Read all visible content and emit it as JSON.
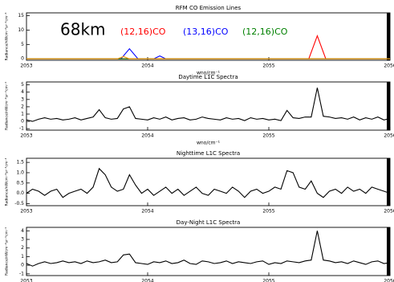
{
  "chart_data": [
    {
      "type": "line",
      "title": "RFM CO Emission Lines",
      "xlabel": "wno/cm⁻¹",
      "ylabel": "Radiance/nWcm⁻²sr⁻¹cm⁻¹",
      "annotation": "68km",
      "xlim": [
        2053,
        2056
      ],
      "xticks": [
        2053,
        2054,
        2055,
        2056
      ],
      "ylim": [
        -0.5,
        16
      ],
      "yticks": [
        0,
        5,
        10,
        15
      ],
      "series": [
        {
          "name": "(12,16)CO",
          "color": "#ff0000",
          "x": [
            2053,
            2055.33,
            2055.4,
            2055.47,
            2056
          ],
          "values": [
            0,
            0,
            8,
            0,
            0
          ]
        },
        {
          "name": "(13,16)CO",
          "color": "#0000ff",
          "x": [
            2053,
            2053.78,
            2053.85,
            2053.92,
            2054.05,
            2054.1,
            2054.15,
            2056
          ],
          "values": [
            0,
            0,
            3.5,
            0,
            0,
            1,
            0,
            0
          ]
        },
        {
          "name": "(12,16)CO",
          "color": "#008000",
          "x": [
            2053,
            2056
          ],
          "values": [
            0,
            0
          ]
        },
        {
          "color": "#ff9900",
          "x": [
            2053,
            2053.75,
            2053.8,
            2053.85,
            2056
          ],
          "values": [
            0,
            0,
            0.8,
            0,
            0
          ]
        }
      ]
    },
    {
      "type": "line",
      "title": "Daytime L1C Spectra",
      "xlabel": "wno/cm⁻¹",
      "ylabel": "Radiance/nWcm⁻²sr⁻¹cm⁻¹",
      "xlim": [
        2053,
        2056
      ],
      "xticks": [
        2053,
        2054,
        2055,
        2056
      ],
      "ylim": [
        -1.2,
        5.4
      ],
      "yticks": [
        -1,
        0,
        1,
        2,
        3,
        4,
        5
      ],
      "color": "#000000",
      "x": [
        2053,
        2053.05,
        2053.1,
        2053.15,
        2053.2,
        2053.25,
        2053.3,
        2053.35,
        2053.4,
        2053.45,
        2053.5,
        2053.55,
        2053.6,
        2053.65,
        2053.7,
        2053.75,
        2053.8,
        2053.85,
        2053.9,
        2053.95,
        2054,
        2054.05,
        2054.1,
        2054.15,
        2054.2,
        2054.25,
        2054.3,
        2054.35,
        2054.4,
        2054.45,
        2054.5,
        2054.55,
        2054.6,
        2054.65,
        2054.7,
        2054.75,
        2054.8,
        2054.85,
        2054.9,
        2054.95,
        2055,
        2055.05,
        2055.1,
        2055.15,
        2055.2,
        2055.25,
        2055.3,
        2055.35,
        2055.4,
        2055.45,
        2055.5,
        2055.55,
        2055.6,
        2055.65,
        2055.7,
        2055.75,
        2055.8,
        2055.85,
        2055.9,
        2055.95,
        2056
      ],
      "values": [
        0.2,
        0.0,
        0.3,
        0.5,
        0.3,
        0.4,
        0.2,
        0.3,
        0.5,
        0.2,
        0.4,
        0.6,
        1.6,
        0.5,
        0.3,
        0.4,
        1.7,
        2.0,
        0.4,
        0.3,
        0.2,
        0.5,
        0.3,
        0.6,
        0.2,
        0.4,
        0.5,
        0.2,
        0.3,
        0.6,
        0.4,
        0.3,
        0.2,
        0.5,
        0.3,
        0.4,
        0.1,
        0.5,
        0.3,
        0.4,
        0.2,
        0.3,
        0.1,
        1.5,
        0.5,
        0.4,
        0.6,
        0.6,
        4.6,
        0.7,
        0.6,
        0.4,
        0.5,
        0.3,
        0.6,
        0.2,
        0.5,
        0.3,
        0.6,
        0.2,
        0.4
      ]
    },
    {
      "type": "line",
      "title": "Nighttime L1C Spectra",
      "ylabel": "Radiance/nWcm⁻²sr⁻¹cm⁻¹",
      "xlim": [
        2053,
        2056
      ],
      "xticks": [
        2053,
        2054,
        2055,
        2056
      ],
      "ylim": [
        -0.6,
        1.7
      ],
      "yticks": [
        {
          "value": -0.5,
          "label": "-0.5"
        },
        {
          "value": 0,
          "label": "0.0"
        },
        {
          "value": 0.5,
          "label": "0.5"
        },
        {
          "value": 1,
          "label": "1.0"
        },
        {
          "value": 1.5,
          "label": "1.5"
        }
      ],
      "color": "#000000",
      "x": [
        2053,
        2053.05,
        2053.1,
        2053.15,
        2053.2,
        2053.25,
        2053.3,
        2053.35,
        2053.4,
        2053.45,
        2053.5,
        2053.55,
        2053.6,
        2053.65,
        2053.7,
        2053.75,
        2053.8,
        2053.85,
        2053.9,
        2053.95,
        2054,
        2054.05,
        2054.1,
        2054.15,
        2054.2,
        2054.25,
        2054.3,
        2054.35,
        2054.4,
        2054.45,
        2054.5,
        2054.55,
        2054.6,
        2054.65,
        2054.7,
        2054.75,
        2054.8,
        2054.85,
        2054.9,
        2054.95,
        2055,
        2055.05,
        2055.1,
        2055.15,
        2055.2,
        2055.25,
        2055.3,
        2055.35,
        2055.4,
        2055.45,
        2055.5,
        2055.55,
        2055.6,
        2055.65,
        2055.7,
        2055.75,
        2055.8,
        2055.85,
        2055.9,
        2055.95,
        2056
      ],
      "values": [
        0.0,
        0.2,
        0.1,
        -0.1,
        0.1,
        0.2,
        -0.2,
        0.0,
        0.1,
        0.2,
        0.0,
        0.3,
        1.2,
        0.9,
        0.3,
        0.1,
        0.2,
        0.9,
        0.4,
        0.0,
        0.2,
        -0.1,
        0.1,
        0.3,
        0.0,
        0.2,
        -0.1,
        0.1,
        0.3,
        0.0,
        -0.1,
        0.2,
        0.1,
        0.0,
        0.3,
        0.1,
        -0.2,
        0.1,
        0.2,
        0.0,
        0.1,
        0.3,
        0.2,
        1.1,
        1.0,
        0.3,
        0.2,
        0.6,
        0.0,
        -0.2,
        0.1,
        0.2,
        0.0,
        0.3,
        0.1,
        0.2,
        0.0,
        0.3,
        0.2,
        0.1,
        0.0
      ]
    },
    {
      "type": "line",
      "title": "Day-Night L1C Spectra",
      "ylabel": "Radiance/nWcm⁻²sr⁻¹cm⁻¹",
      "xlim": [
        2053,
        2056
      ],
      "xticks": [
        2053,
        2054,
        2055,
        2056
      ],
      "ylim": [
        -1.2,
        4.4
      ],
      "yticks": [
        -1,
        0,
        1,
        2,
        3,
        4
      ],
      "color": "#000000",
      "x": [
        2053,
        2053.05,
        2053.1,
        2053.15,
        2053.2,
        2053.25,
        2053.3,
        2053.35,
        2053.4,
        2053.45,
        2053.5,
        2053.55,
        2053.6,
        2053.65,
        2053.7,
        2053.75,
        2053.8,
        2053.85,
        2053.9,
        2053.95,
        2054,
        2054.05,
        2054.1,
        2054.15,
        2054.2,
        2054.25,
        2054.3,
        2054.35,
        2054.4,
        2054.45,
        2054.5,
        2054.55,
        2054.6,
        2054.65,
        2054.7,
        2054.75,
        2054.8,
        2054.85,
        2054.9,
        2054.95,
        2055,
        2055.05,
        2055.1,
        2055.15,
        2055.2,
        2055.25,
        2055.3,
        2055.35,
        2055.4,
        2055.45,
        2055.5,
        2055.55,
        2055.6,
        2055.65,
        2055.7,
        2055.75,
        2055.8,
        2055.85,
        2055.9,
        2055.95,
        2056
      ],
      "values": [
        0.2,
        -0.1,
        0.2,
        0.4,
        0.2,
        0.3,
        0.5,
        0.3,
        0.4,
        0.2,
        0.5,
        0.3,
        0.4,
        0.6,
        0.3,
        0.4,
        1.2,
        1.3,
        0.3,
        0.2,
        0.1,
        0.4,
        0.3,
        0.5,
        0.2,
        0.3,
        0.6,
        0.2,
        0.1,
        0.5,
        0.4,
        0.2,
        0.3,
        0.5,
        0.2,
        0.4,
        0.3,
        0.2,
        0.4,
        0.5,
        0.1,
        0.3,
        0.2,
        0.5,
        0.4,
        0.3,
        0.5,
        0.6,
        4.0,
        0.6,
        0.5,
        0.3,
        0.4,
        0.2,
        0.5,
        0.3,
        0.1,
        0.4,
        0.5,
        0.2,
        0.3
      ]
    }
  ]
}
